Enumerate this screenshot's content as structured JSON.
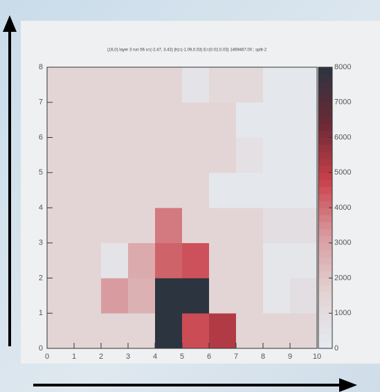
{
  "chart_data": {
    "type": "heatmap",
    "title": "(16,0) layer 3 run 56 x=(-2.47, 3.43) |h|=(-1.09,0.03) E=(0.02,0.03) 1469467.00 ; split-2",
    "xlim": [
      0,
      10
    ],
    "ylim": [
      0,
      8
    ],
    "zlim": [
      0,
      8000
    ],
    "xticks": [
      0,
      1,
      2,
      3,
      4,
      5,
      6,
      7,
      8,
      9,
      10
    ],
    "yticks": [
      0,
      1,
      2,
      3,
      4,
      5,
      6,
      7,
      8
    ],
    "zticks": [
      0,
      1000,
      2000,
      3000,
      4000,
      5000,
      6000,
      7000,
      8000
    ],
    "colors": [
      "#e4ecf2",
      "#e3d3d3",
      "#d89ca0",
      "#c9404a",
      "#6a2a36",
      "#2c3440"
    ],
    "z": [
      [
        1500,
        1500,
        1500,
        1500,
        8000,
        4600,
        5200,
        1500,
        1500,
        1500
      ],
      [
        1500,
        1500,
        3200,
        2600,
        8000,
        8000,
        1500,
        1500,
        400,
        900
      ],
      [
        1500,
        1500,
        500,
        2800,
        4200,
        4500,
        1500,
        1500,
        400,
        400
      ],
      [
        1500,
        1500,
        1500,
        1500,
        3800,
        1500,
        1500,
        1500,
        900,
        900
      ],
      [
        1500,
        1500,
        1500,
        1500,
        1500,
        1500,
        300,
        300,
        300,
        300
      ],
      [
        1500,
        1500,
        1500,
        1500,
        1500,
        1500,
        1500,
        800,
        300,
        300
      ],
      [
        1500,
        1500,
        1500,
        1500,
        1500,
        1500,
        1500,
        300,
        300,
        300
      ],
      [
        1500,
        1500,
        1500,
        1500,
        1500,
        500,
        1200,
        1200,
        300,
        300
      ]
    ]
  }
}
